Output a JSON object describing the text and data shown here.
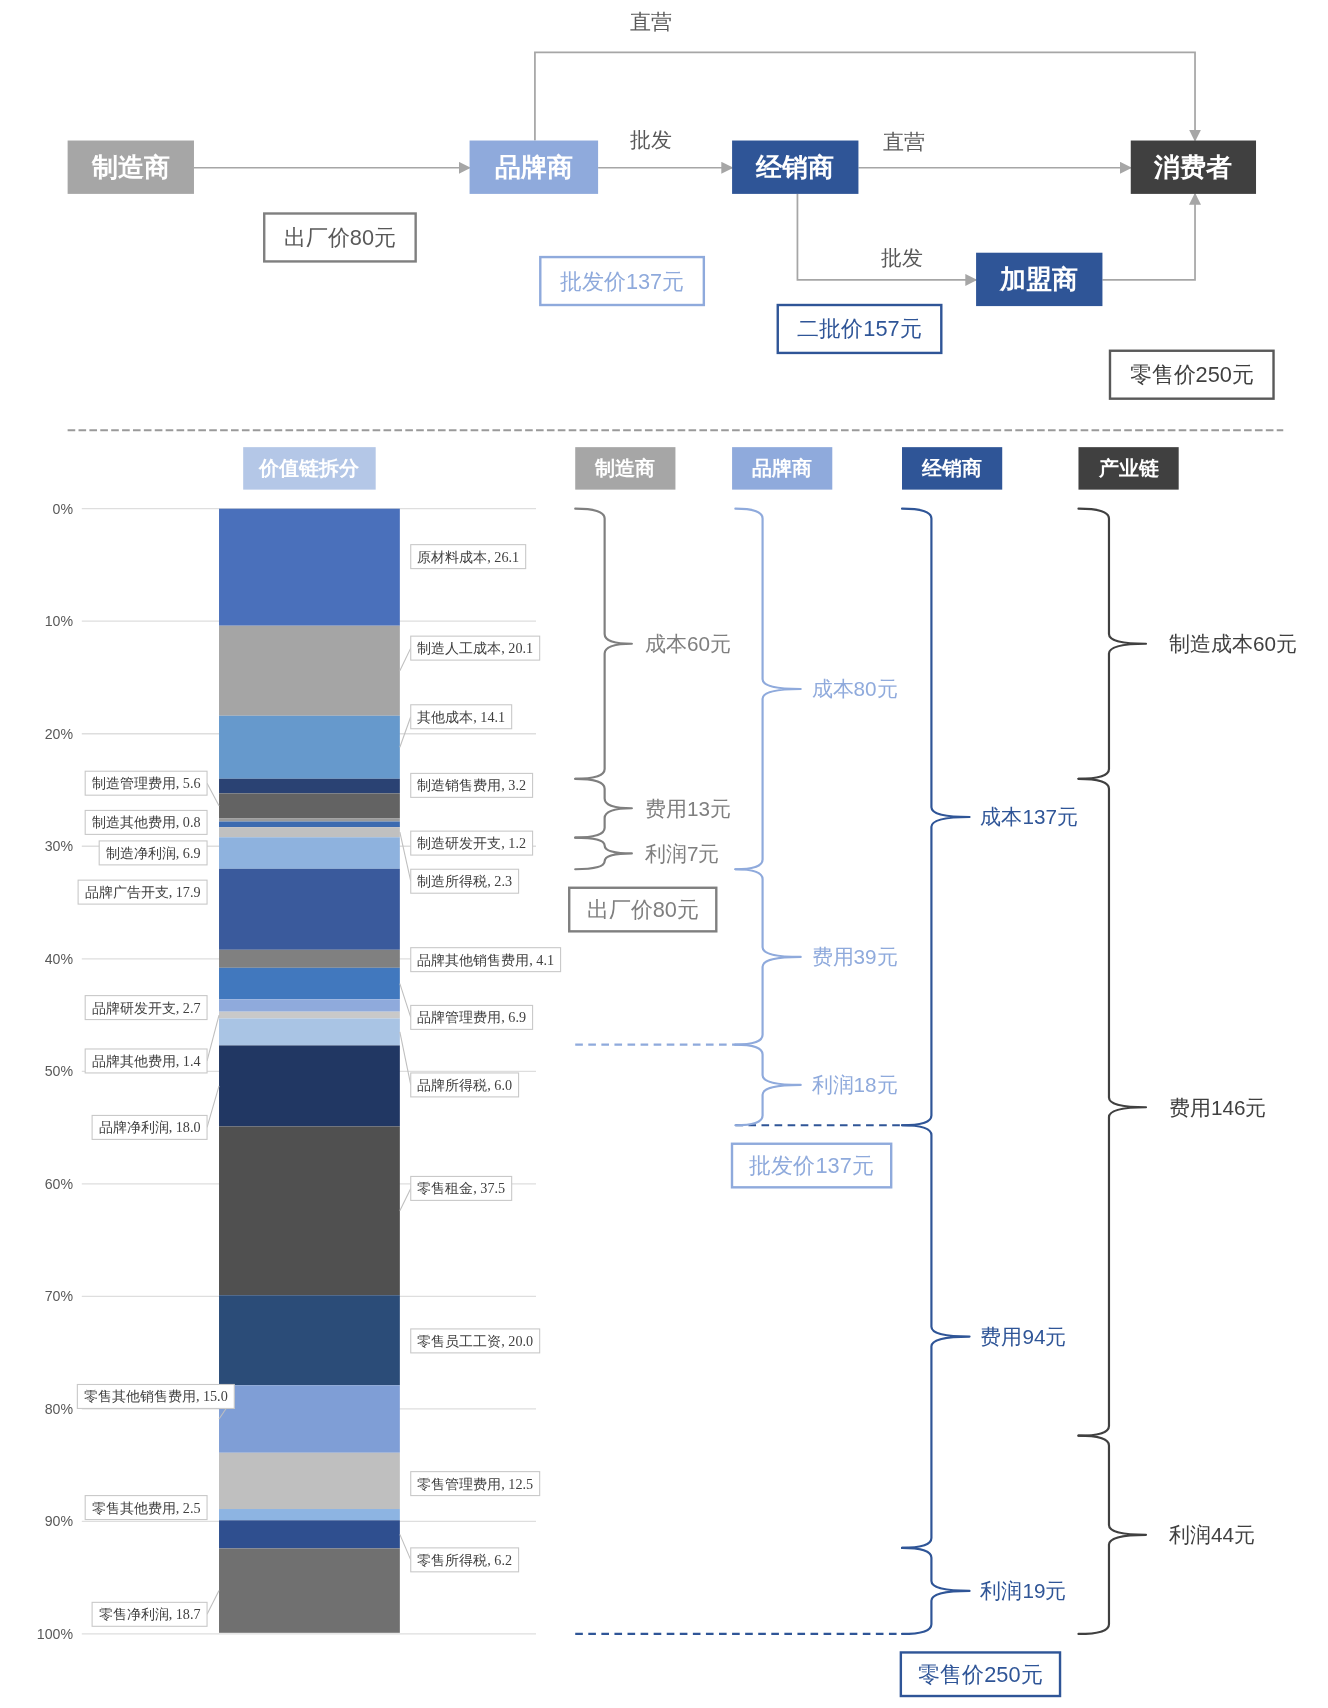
{
  "chart_data": [
    {
      "type": "other",
      "annotations": [
        "制造商",
        "品牌商",
        "经销商",
        "消费者",
        "加盟商",
        "直营",
        "批发",
        "直营",
        "批发",
        "出厂价80元",
        "批发价137元",
        "二批价157元",
        "零售价250元"
      ]
    },
    {
      "type": "bar",
      "categories": [
        "价值链拆分"
      ],
      "stacked": true,
      "ylim": [
        100,
        0
      ],
      "yticks": [
        {
          "value": 0,
          "label": "0%"
        },
        {
          "value": 10,
          "label": "10%"
        },
        {
          "value": 20,
          "label": "20%"
        },
        {
          "value": 30,
          "label": "30%"
        },
        {
          "value": 40,
          "label": "40%"
        },
        {
          "value": 50,
          "label": "50%"
        },
        {
          "value": 60,
          "label": "60%"
        },
        {
          "value": 70,
          "label": "70%"
        },
        {
          "value": 80,
          "label": "80%"
        },
        {
          "value": 90,
          "label": "90%"
        },
        {
          "value": 100,
          "label": "100%"
        }
      ],
      "grid": "y",
      "series": [
        {
          "name": "原材料成本, 26.1",
          "color": "#4a70bb",
          "values": [
            10.4
          ]
        },
        {
          "name": "制造人工成本, 20.1",
          "color": "#a5a5a5",
          "values": [
            8.0
          ]
        },
        {
          "name": "其他成本, 14.1",
          "color": "#6699cc",
          "values": [
            5.6
          ]
        },
        {
          "name": "制造销售费用, 3.2",
          "color": "#2a4273",
          "values": [
            1.3
          ]
        },
        {
          "name": "制造管理费用, 5.6",
          "color": "#636363",
          "values": [
            2.2
          ]
        },
        {
          "name": "制造其他费用, 0.8",
          "color": "#9a9a9a",
          "values": [
            0.3
          ]
        },
        {
          "name": "制造研发开支, 1.2",
          "color": "#3c6ab0",
          "values": [
            0.5
          ]
        },
        {
          "name": "制造所得税, 2.3",
          "color": "#c0c0c0",
          "values": [
            0.9
          ]
        },
        {
          "name": "制造净利润, 6.9",
          "color": "#8eb2de",
          "values": [
            2.8
          ]
        },
        {
          "name": "品牌广告开支, 17.9",
          "color": "#3a5a9c",
          "values": [
            7.2
          ]
        },
        {
          "name": "品牌其他销售费用, 4.1",
          "color": "#808080",
          "values": [
            1.6
          ]
        },
        {
          "name": "品牌管理费用, 6.9",
          "color": "#4178be",
          "values": [
            2.8
          ]
        },
        {
          "name": "品牌研发开支, 2.7",
          "color": "#8faadc",
          "values": [
            1.1
          ]
        },
        {
          "name": "品牌其他费用, 1.4",
          "color": "#c9c9c9",
          "values": [
            0.6
          ]
        },
        {
          "name": "品牌所得税, 6.0",
          "color": "#a9c4e4",
          "values": [
            2.4
          ]
        },
        {
          "name": "品牌净利润, 18.0",
          "color": "#213763",
          "values": [
            7.2
          ]
        },
        {
          "name": "零售租金, 37.5",
          "color": "#505050",
          "values": [
            15.0
          ]
        },
        {
          "name": "零售员工工资, 20.0",
          "color": "#2b4c78",
          "values": [
            8.0
          ]
        },
        {
          "name": "零售其他销售费用, 15.0",
          "color": "#7f9ed6",
          "values": [
            6.0
          ]
        },
        {
          "name": "零售管理费用, 12.5",
          "color": "#bfbfbf",
          "values": [
            5.0
          ]
        },
        {
          "name": "零售其他费用, 2.5",
          "color": "#8db4e2",
          "values": [
            1.0
          ]
        },
        {
          "name": "零售所得税, 6.2",
          "color": "#2f4f8f",
          "values": [
            2.5
          ]
        },
        {
          "name": "零售净利润, 18.7",
          "color": "#707070",
          "values": [
            7.5
          ]
        }
      ]
    },
    {
      "type": "other",
      "annotations": [
        "制造商",
        "品牌商",
        "经销商",
        "产业链",
        "成本60元",
        "费用13元",
        "利润7元",
        "成本80元",
        "费用39元",
        "利润18元",
        "成本137元",
        "费用94元",
        "利润19元",
        "制造成本60元",
        "费用146元",
        "利润44元",
        "出厂价80元",
        "批发价137元",
        "零售价250元"
      ]
    }
  ]
}
